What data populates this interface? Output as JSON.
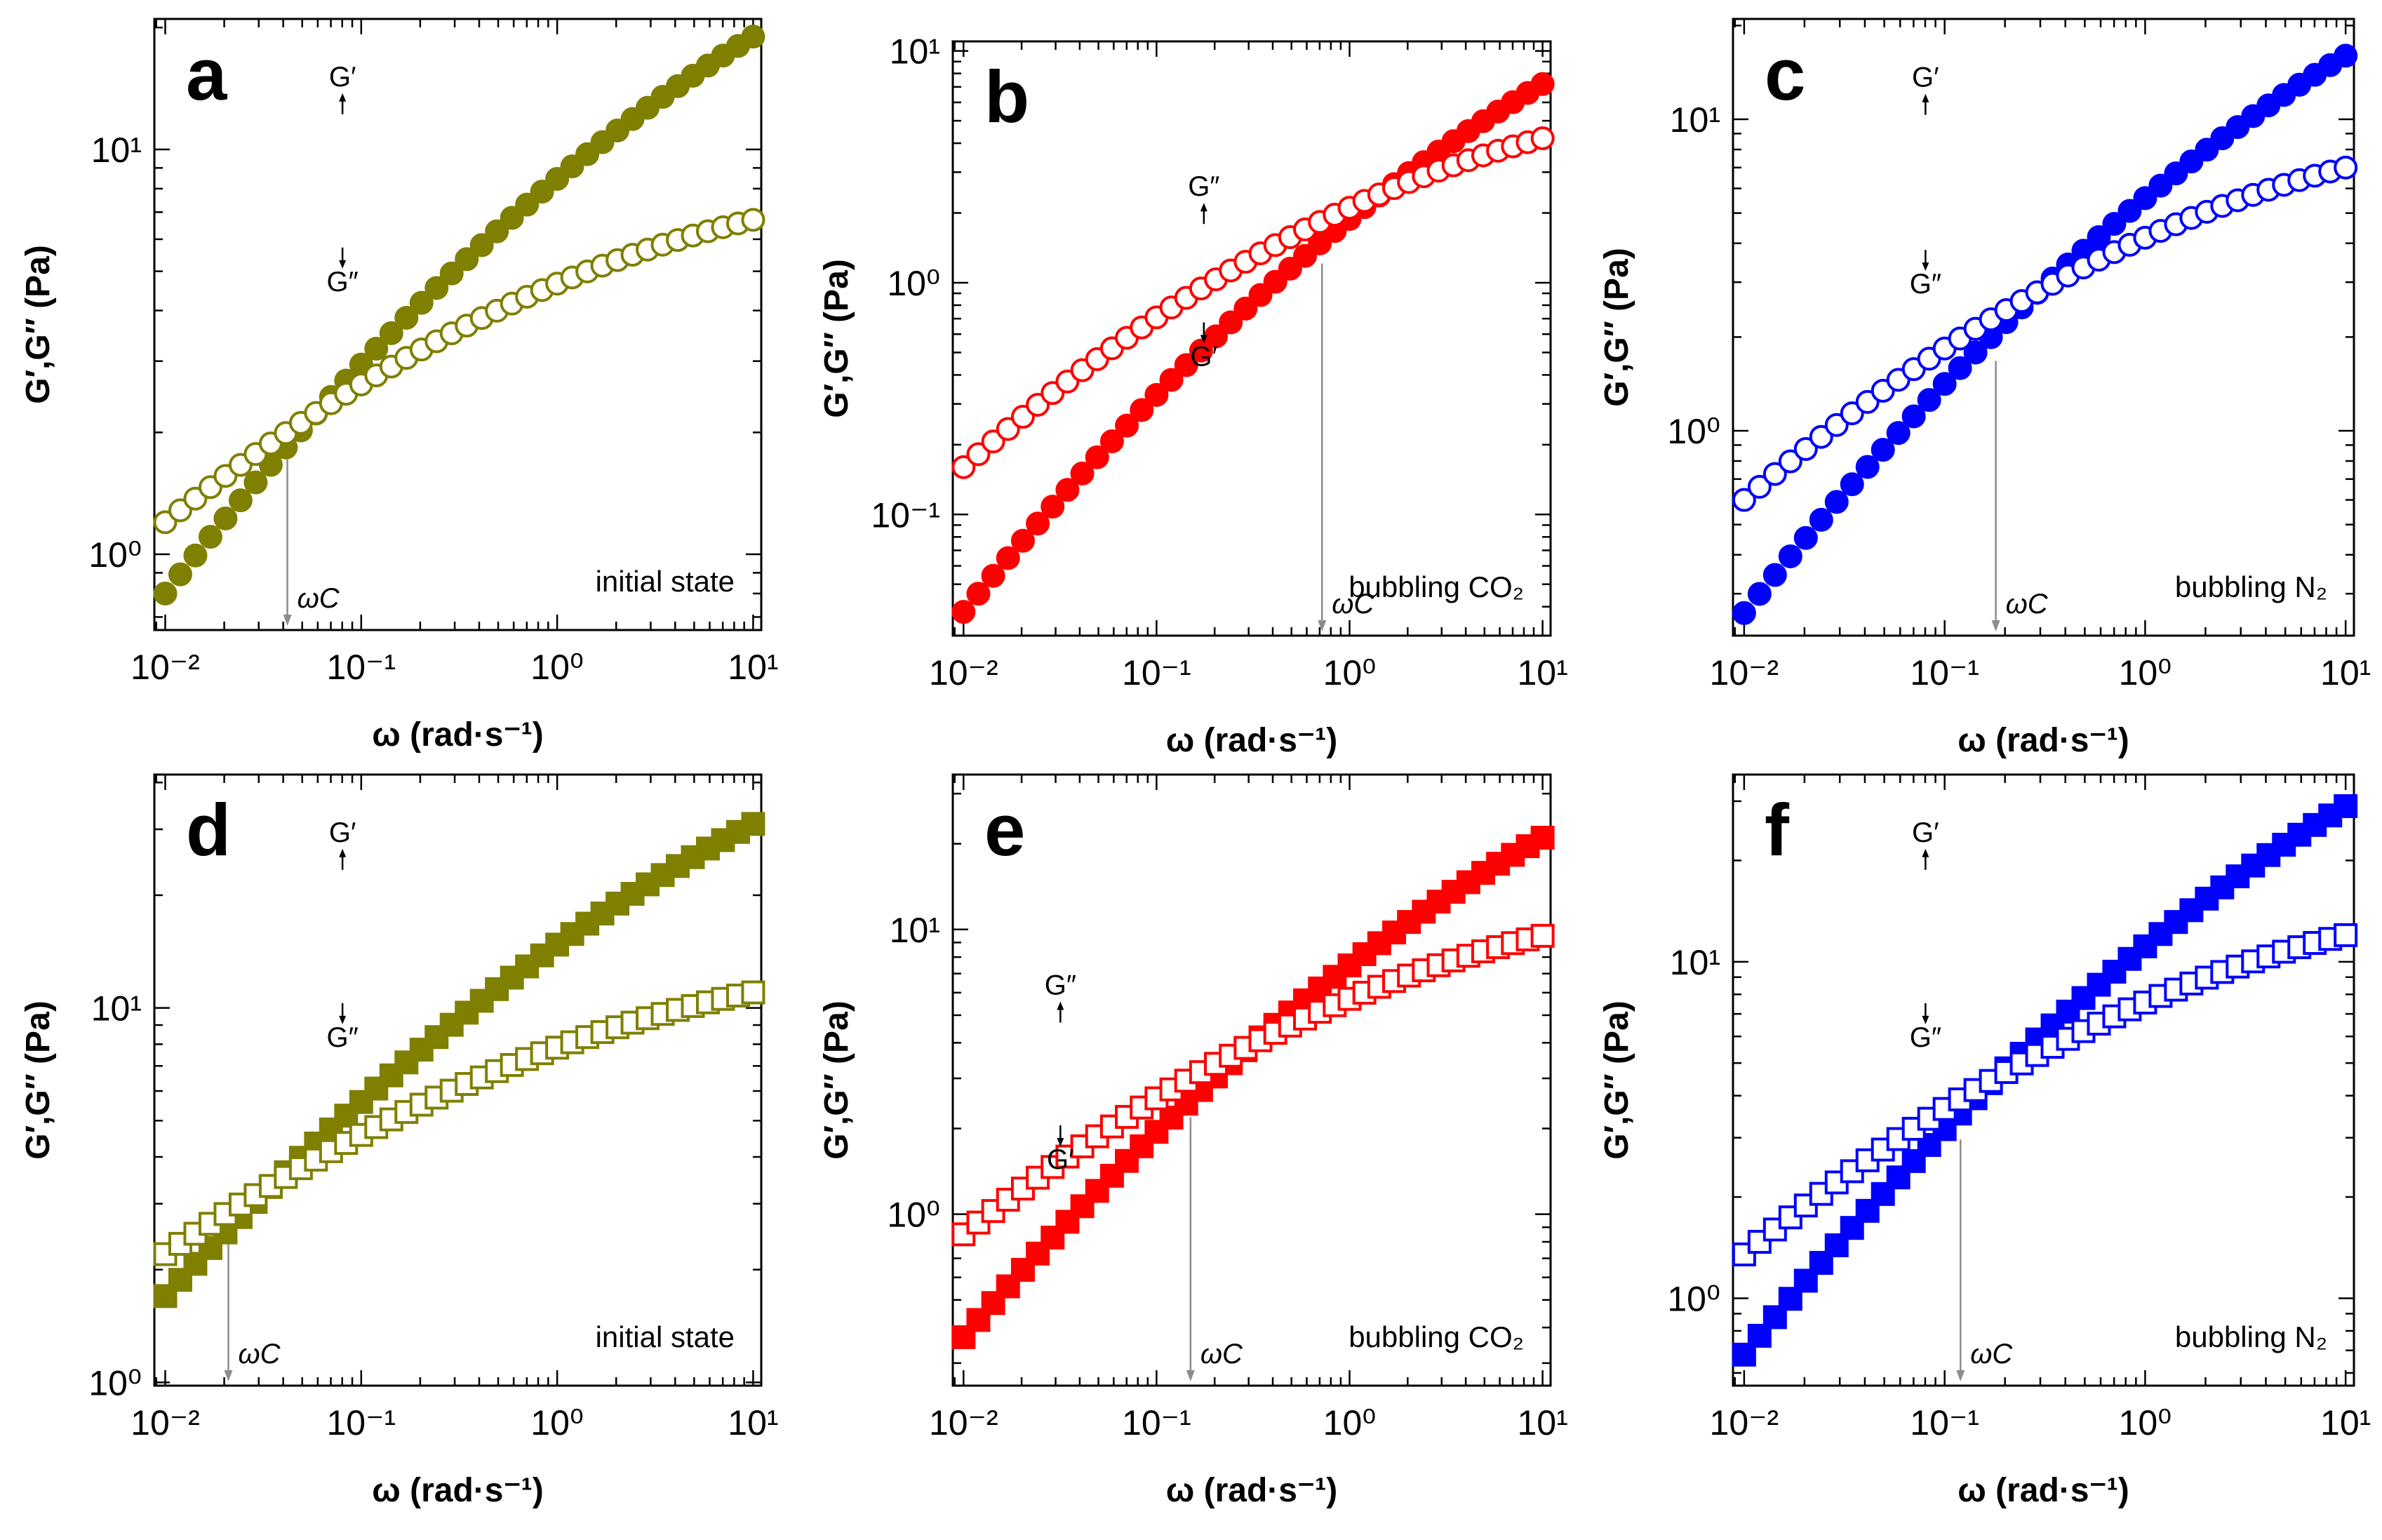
{
  "chart_data": [
    {
      "panel": "a",
      "type": "scatter",
      "marker": "circle",
      "color": "#7f7f00",
      "annotation": "initial state",
      "xlabel": "ω (rad·s⁻¹)",
      "ylabel": "G′,G″ (Pa)",
      "xlim": [
        0.0088,
        11
      ],
      "ylim": [
        0.65,
        21
      ],
      "xticks": [
        "10⁻²",
        "10⁻¹",
        "10⁰",
        "10¹"
      ],
      "yticks": [
        "10⁰",
        "10¹"
      ],
      "omega_c": 0.042,
      "up_label": "G′",
      "down_label": "G″",
      "series": [
        {
          "name": "G′",
          "filled": true,
          "start": 0.8,
          "end": 19
        },
        {
          "name": "G″",
          "filled": false,
          "start": 1.2,
          "end": 6.7
        }
      ]
    },
    {
      "panel": "b",
      "type": "scatter",
      "marker": "circle",
      "color": "#ff0000",
      "annotation": "bubbling CO₂",
      "xlabel": "ω (rad·s⁻¹)",
      "ylabel": "G′,G″ (Pa)",
      "xlim": [
        0.0088,
        11
      ],
      "ylim": [
        0.03,
        11
      ],
      "xticks": [
        "10⁻²",
        "10⁻¹",
        "10⁰",
        "10¹"
      ],
      "yticks": [
        "10⁻¹",
        "10⁰",
        "10¹"
      ],
      "omega_c": 0.72,
      "up_label": "G″",
      "down_label": "G′",
      "series": [
        {
          "name": "G′",
          "filled": true,
          "start": 0.038,
          "end": 7.2
        },
        {
          "name": "G″",
          "filled": false,
          "start": 0.16,
          "end": 4.2
        }
      ]
    },
    {
      "panel": "c",
      "type": "scatter",
      "marker": "circle",
      "color": "#0000ff",
      "annotation": "bubbling N₂",
      "xlabel": "ω (rad·s⁻¹)",
      "ylabel": "G′,G″ (Pa)",
      "xlim": [
        0.0088,
        11
      ],
      "ylim": [
        0.22,
        21
      ],
      "xticks": [
        "10⁻²",
        "10⁻¹",
        "10⁰",
        "10¹"
      ],
      "yticks": [
        "10⁰",
        "10¹"
      ],
      "omega_c": 0.18,
      "up_label": "G′",
      "down_label": "G″",
      "series": [
        {
          "name": "G′",
          "filled": true,
          "start": 0.26,
          "end": 16
        },
        {
          "name": "G″",
          "filled": false,
          "start": 0.6,
          "end": 7.0
        }
      ]
    },
    {
      "panel": "d",
      "type": "scatter",
      "marker": "square",
      "color": "#7f7f00",
      "annotation": "initial state",
      "xlabel": "ω (rad·s⁻¹)",
      "ylabel": "G′,G″ (Pa)",
      "xlim": [
        0.0088,
        11
      ],
      "ylim": [
        0.98,
        42
      ],
      "xticks": [
        "10⁻²",
        "10⁻¹",
        "10⁰",
        "10¹"
      ],
      "yticks": [
        "10⁰",
        "10¹"
      ],
      "omega_c": 0.021,
      "up_label": "G′",
      "down_label": "G″",
      "series": [
        {
          "name": "G′",
          "filled": true,
          "start": 1.7,
          "end": 31
        },
        {
          "name": "G″",
          "filled": false,
          "start": 2.2,
          "end": 11
        }
      ]
    },
    {
      "panel": "e",
      "type": "scatter",
      "marker": "square",
      "color": "#ff0000",
      "annotation": "bubbling CO₂",
      "xlabel": "ω (rad·s⁻¹)",
      "ylabel": "G′,G″ (Pa)",
      "xlim": [
        0.0088,
        11
      ],
      "ylim": [
        0.25,
        35
      ],
      "xticks": [
        "10⁻²",
        "10⁻¹",
        "10⁰",
        "10¹"
      ],
      "yticks": [
        "10⁰",
        "10¹"
      ],
      "omega_c": 0.15,
      "up_label": "G″",
      "down_label": "G′",
      "series": [
        {
          "name": "G′",
          "filled": true,
          "start": 0.37,
          "end": 21
        },
        {
          "name": "G″",
          "filled": false,
          "start": 0.85,
          "end": 9.5
        }
      ]
    },
    {
      "panel": "f",
      "type": "scatter",
      "marker": "square",
      "color": "#0000ff",
      "annotation": "bubbling N₂",
      "xlabel": "ω (rad·s⁻¹)",
      "ylabel": "G′,G″ (Pa)",
      "xlim": [
        0.0088,
        11
      ],
      "ylim": [
        0.55,
        36
      ],
      "xticks": [
        "10⁻²",
        "10⁻¹",
        "10⁰",
        "10¹"
      ],
      "yticks": [
        "10⁰",
        "10¹"
      ],
      "omega_c": 0.12,
      "up_label": "G′",
      "down_label": "G″",
      "series": [
        {
          "name": "G′",
          "filled": true,
          "start": 0.68,
          "end": 29
        },
        {
          "name": "G″",
          "filled": false,
          "start": 1.35,
          "end": 12
        }
      ]
    }
  ],
  "omega_c_label": "ωC"
}
